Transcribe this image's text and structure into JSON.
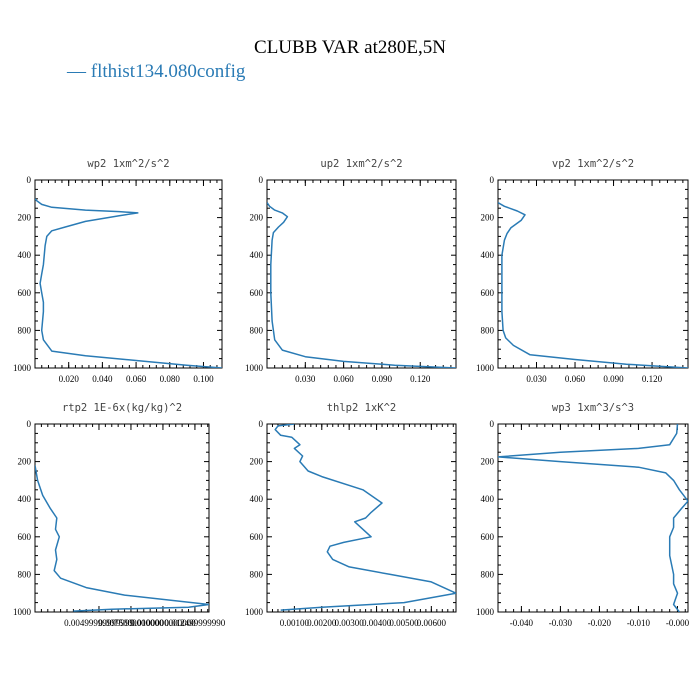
{
  "figure": {
    "title": "CLUBB VAR at280E,5N",
    "legend_label": "— flthist134.080config",
    "series_color": "#2a7bb5"
  },
  "chart_data": [
    {
      "type": "line",
      "title": "wp2  1xm^2/s^2",
      "xlim": [
        0,
        0.111
      ],
      "ylim": [
        1000,
        0
      ],
      "xticks": [
        0.02,
        0.04,
        0.06,
        0.08,
        0.1
      ],
      "xtick_labels": [
        "0.020",
        "0.040",
        "0.060",
        "0.080",
        "0.100"
      ],
      "yticks": [
        0,
        200,
        400,
        600,
        800,
        1000
      ],
      "ytick_labels": [
        "0",
        "200",
        "400",
        "600",
        "800",
        "1000"
      ],
      "series": [
        {
          "x": [
            0.0,
            0.001,
            0.004,
            0.01,
            0.03,
            0.05,
            0.061,
            0.05,
            0.03,
            0.018,
            0.01,
            0.007,
            0.006,
            0.005,
            0.004,
            0.003,
            0.004,
            0.005,
            0.005,
            0.004,
            0.005,
            0.01,
            0.03,
            0.06,
            0.09,
            0.111
          ],
          "y": [
            100,
            110,
            130,
            145,
            160,
            168,
            175,
            190,
            220,
            250,
            270,
            300,
            350,
            450,
            500,
            550,
            600,
            650,
            700,
            800,
            850,
            910,
            935,
            960,
            985,
            1000
          ]
        }
      ]
    },
    {
      "type": "line",
      "title": "up2  1xm^2/s^2",
      "xlim": [
        0,
        0.148
      ],
      "ylim": [
        1000,
        0
      ],
      "xticks": [
        0.03,
        0.06,
        0.09,
        0.12
      ],
      "xtick_labels": [
        "0.030",
        "0.060",
        "0.090",
        "0.120"
      ],
      "yticks": [
        0,
        200,
        400,
        600,
        800,
        1000
      ],
      "ytick_labels": [
        "0",
        "200",
        "400",
        "600",
        "800",
        "1000"
      ],
      "series": [
        {
          "x": [
            0.0,
            0.002,
            0.006,
            0.012,
            0.016,
            0.013,
            0.009,
            0.005,
            0.004,
            0.003,
            0.003,
            0.004,
            0.006,
            0.012,
            0.03,
            0.06,
            0.1,
            0.148
          ],
          "y": [
            120,
            140,
            160,
            175,
            195,
            225,
            250,
            280,
            320,
            450,
            600,
            750,
            850,
            905,
            940,
            965,
            985,
            1000
          ]
        }
      ]
    },
    {
      "type": "line",
      "title": "vp2  1xm^2/s^2",
      "xlim": [
        0,
        0.148
      ],
      "ylim": [
        1000,
        0
      ],
      "xticks": [
        0.03,
        0.06,
        0.09,
        0.12
      ],
      "xtick_labels": [
        "0.030",
        "0.060",
        "0.090",
        "0.120"
      ],
      "yticks": [
        0,
        200,
        400,
        600,
        800,
        1000
      ],
      "ytick_labels": [
        "0",
        "200",
        "400",
        "600",
        "800",
        "1000"
      ],
      "series": [
        {
          "x": [
            0.0,
            0.005,
            0.015,
            0.021,
            0.018,
            0.01,
            0.007,
            0.005,
            0.003,
            0.003,
            0.003,
            0.004,
            0.006,
            0.012,
            0.025,
            0.06,
            0.1,
            0.148
          ],
          "y": [
            120,
            140,
            165,
            185,
            215,
            255,
            285,
            320,
            400,
            550,
            700,
            800,
            840,
            880,
            930,
            955,
            980,
            1000
          ]
        }
      ]
    },
    {
      "type": "line",
      "title": "rtp2  1E-6x(kg/kg)^2",
      "xlim": [
        0,
        0.0136
      ],
      "ylim": [
        1000,
        0
      ],
      "xticks": [
        0.005,
        0.0075,
        0.01,
        0.0125
      ],
      "xtick_labels": [
        "0.00499999999999",
        "0.0075000000000",
        "0.0100000000000",
        "0.012499999990"
      ],
      "yticks": [
        0,
        200,
        400,
        600,
        800,
        1000
      ],
      "ytick_labels": [
        "0",
        "200",
        "400",
        "600",
        "800",
        "1000"
      ],
      "series": [
        {
          "x": [
            0.0,
            0.0002,
            0.0006,
            0.0012,
            0.0017,
            0.0016,
            0.0019,
            0.0016,
            0.0017,
            0.0015,
            0.002,
            0.004,
            0.007,
            0.0136,
            0.012,
            0.006,
            0.003
          ],
          "y": [
            220,
            300,
            380,
            450,
            500,
            560,
            600,
            670,
            720,
            780,
            820,
            870,
            910,
            960,
            975,
            985,
            995
          ]
        }
      ]
    },
    {
      "type": "line",
      "title": "thlp2  1xK^2",
      "xlim": [
        0,
        0.0069
      ],
      "ylim": [
        1000,
        0
      ],
      "xticks": [
        0.001,
        0.002,
        0.003,
        0.004,
        0.005,
        0.006
      ],
      "xtick_labels": [
        "0.00100",
        "0.00200",
        "0.00300",
        "0.00400",
        "0.00500",
        "0.00600"
      ],
      "yticks": [
        0,
        200,
        400,
        600,
        800,
        1000
      ],
      "ytick_labels": [
        "0",
        "200",
        "400",
        "600",
        "800",
        "1000"
      ],
      "series": [
        {
          "x": [
            0.001,
            0.0004,
            0.0003,
            0.0005,
            0.0009,
            0.0012,
            0.001,
            0.0013,
            0.0012,
            0.0015,
            0.002,
            0.0035,
            0.0042,
            0.0038,
            0.0036,
            0.0032,
            0.0035,
            0.0038,
            0.0028,
            0.0023,
            0.0022,
            0.0024,
            0.003,
            0.0045,
            0.006,
            0.0069,
            0.005,
            0.002,
            0.0005
          ],
          "y": [
            0,
            10,
            30,
            60,
            70,
            110,
            130,
            170,
            200,
            250,
            280,
            350,
            420,
            470,
            500,
            520,
            560,
            600,
            630,
            650,
            680,
            720,
            760,
            800,
            840,
            900,
            950,
            975,
            990
          ]
        }
      ]
    },
    {
      "type": "line",
      "title": "wp3  1xm^3/s^3",
      "xlim": [
        -0.046,
        0.0027
      ],
      "ylim": [
        1000,
        0
      ],
      "xticks": [
        -0.04,
        -0.03,
        -0.02,
        -0.01,
        0.0
      ],
      "xtick_labels": [
        "-0.040",
        "-0.030",
        "-0.020",
        "-0.010",
        "-0.000"
      ],
      "yticks": [
        0,
        200,
        400,
        600,
        800,
        1000
      ],
      "ytick_labels": [
        "0",
        "200",
        "400",
        "600",
        "800",
        "1000"
      ],
      "series": [
        {
          "x": [
            0.0,
            -0.0002,
            -0.002,
            -0.01,
            -0.03,
            -0.046,
            -0.03,
            -0.01,
            -0.003,
            -0.001,
            0.0005,
            0.0027,
            0.001,
            -0.001,
            -0.001,
            -0.002,
            -0.002,
            -0.001,
            -0.001,
            0.0,
            -0.001,
            0.0005
          ],
          "y": [
            0,
            50,
            110,
            130,
            150,
            175,
            200,
            230,
            260,
            300,
            350,
            410,
            450,
            500,
            550,
            600,
            700,
            800,
            850,
            900,
            960,
            1000
          ]
        }
      ]
    }
  ]
}
